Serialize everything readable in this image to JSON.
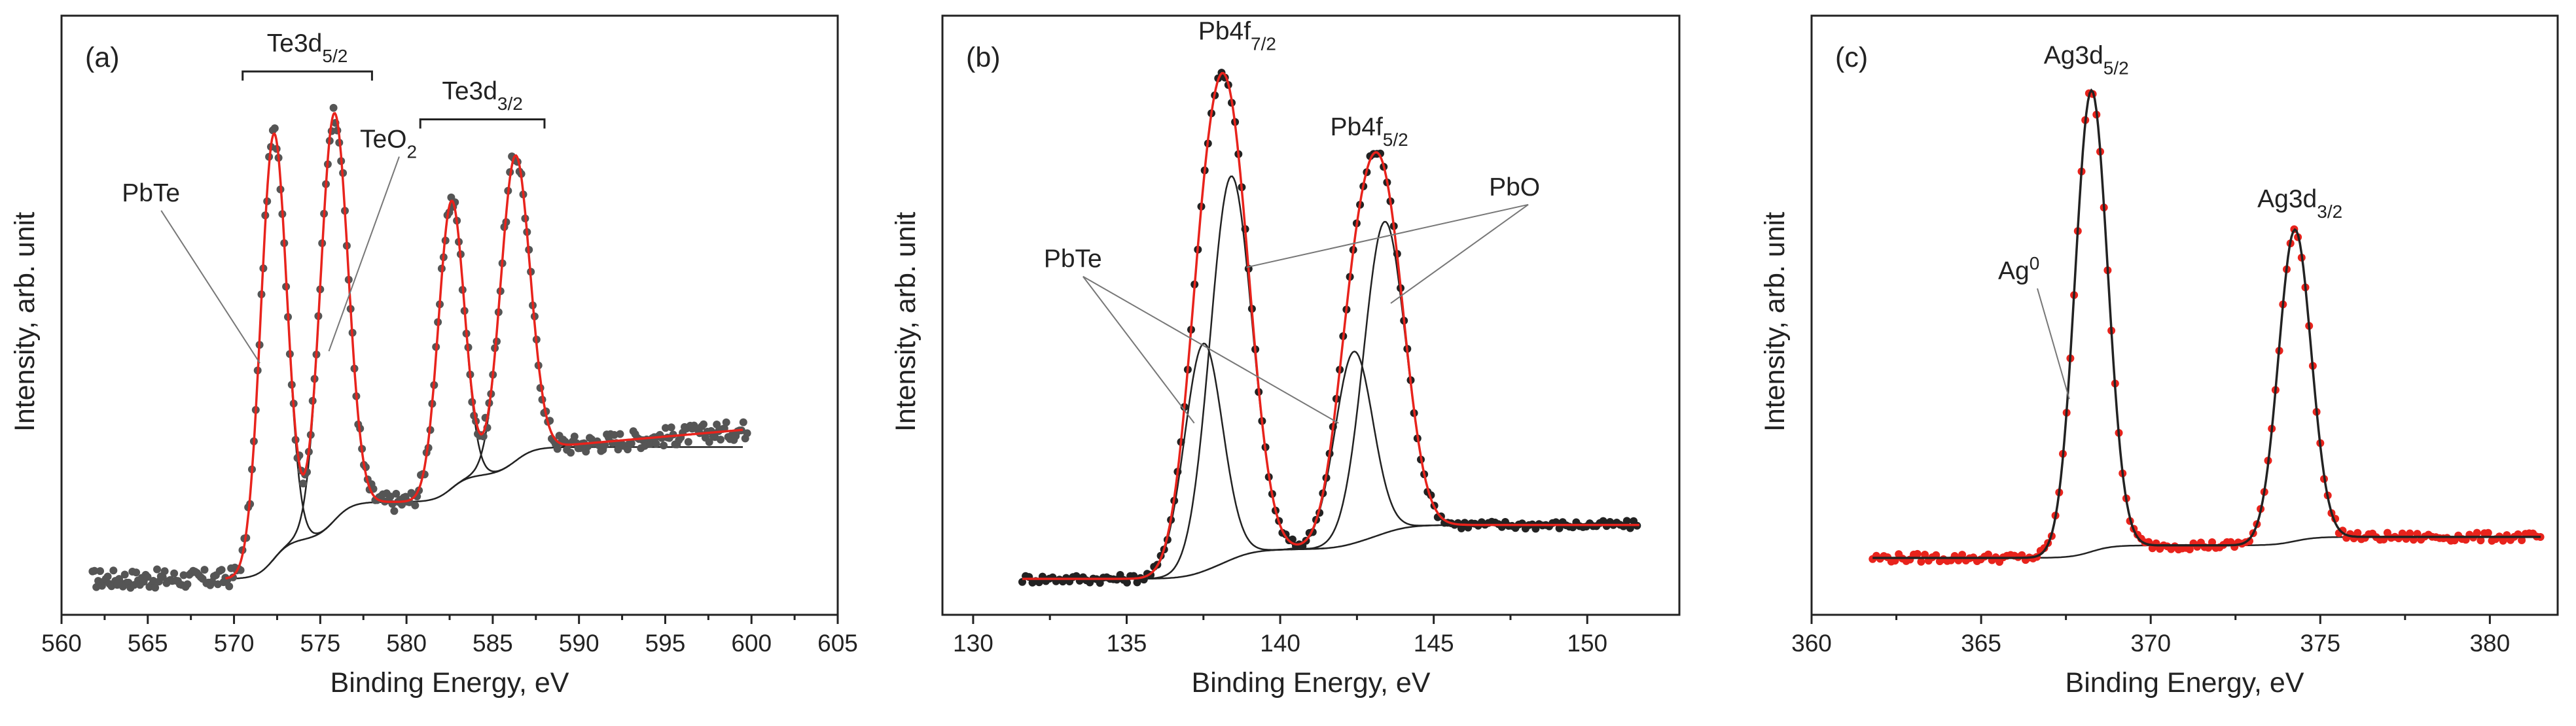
{
  "chart_data": [
    {
      "type": "line",
      "panel_label": "(a)",
      "xlabel": "Binding Energy, eV",
      "ylabel": "Intensity, arb. unit",
      "xlim": [
        560,
        605
      ],
      "ylim": [
        0,
        100
      ],
      "xticks": [
        560,
        565,
        570,
        575,
        580,
        585,
        590,
        595,
        600,
        605
      ],
      "yticks_shown": false,
      "grid": false,
      "background": {
        "start": 6,
        "end": 28
      },
      "components": [
        {
          "name": "PbTe",
          "center": 572.3,
          "amplitude": 71,
          "sigma": 0.75
        },
        {
          "name": "TeO2",
          "center": 575.8,
          "amplitude": 68,
          "sigma": 0.8
        },
        {
          "name": "PbTe 3/2",
          "center": 582.6,
          "amplitude": 48,
          "sigma": 0.75
        },
        {
          "name": "TeO2 3/2",
          "center": 586.3,
          "amplitude": 51,
          "sigma": 0.85
        }
      ],
      "data_range": [
        561.8,
        599.8
      ],
      "fit_range": [
        569.5,
        599.5
      ],
      "measured_color": "#555555",
      "fit_color": "#e8231c",
      "brackets": [
        {
          "label_main": "Te3d",
          "label_sub": "5/2",
          "x_from": 570.5,
          "x_to": 578,
          "y": 92
        },
        {
          "label_main": "Te3d",
          "label_sub": "3/2",
          "x_from": 580.8,
          "x_to": 588,
          "y": 84
        }
      ],
      "annotations": [
        {
          "label_main": "PbTe",
          "label_sub": "",
          "text_x": 563.5,
          "text_y": 69,
          "points_to": [
            [
              571.5,
              42
            ]
          ]
        },
        {
          "label_main": "TeO",
          "label_sub": "2",
          "text_x": 577.3,
          "text_y": 78,
          "points_to": [
            [
              575.5,
              44
            ]
          ]
        }
      ]
    },
    {
      "type": "line",
      "panel_label": "(b)",
      "xlabel": "Binding Energy, eV",
      "ylabel": "Intensity, arb. unit",
      "xlim": [
        129,
        153
      ],
      "ylim": [
        0,
        100
      ],
      "xticks": [
        130,
        135,
        140,
        145,
        150
      ],
      "yticks_shown": false,
      "grid": false,
      "background": {
        "start": 6,
        "end": 15
      },
      "components": [
        {
          "name": "PbTe 4f7/2",
          "center": 137.5,
          "amplitude": 38,
          "sigma": 0.62
        },
        {
          "name": "PbO 4f7/2",
          "center": 138.4,
          "amplitude": 64,
          "sigma": 0.68
        },
        {
          "name": "PbTe 4f5/2",
          "center": 142.4,
          "amplitude": 32,
          "sigma": 0.62
        },
        {
          "name": "PbO 4f5/2",
          "center": 143.4,
          "amplitude": 52,
          "sigma": 0.68
        }
      ],
      "data_range": [
        131.6,
        151.7
      ],
      "fit_range": [
        131.6,
        151.7
      ],
      "measured_color": "#222222",
      "fit_color": "#e8231c",
      "brackets": [],
      "labels": [
        {
          "label_main": "Pb4f",
          "label_sub": "7/2",
          "x": 138.6,
          "y": 96
        },
        {
          "label_main": "Pb4f",
          "label_sub": "5/2",
          "x": 142.9,
          "y": 80
        }
      ],
      "annotations": [
        {
          "label_main": "PbTe",
          "label_sub": "",
          "text_x": 132.3,
          "text_y": 58,
          "points_to": [
            [
              137.2,
              32
            ],
            [
              141.9,
              32
            ]
          ]
        },
        {
          "label_main": "PbO",
          "label_sub": "",
          "text_x": 146.8,
          "text_y": 70,
          "points_to": [
            [
              138.9,
              58
            ],
            [
              143.6,
              52
            ]
          ]
        }
      ]
    },
    {
      "type": "line",
      "panel_label": "(c)",
      "xlabel": "Binding Energy, eV",
      "ylabel": "Intensity, arb. unit",
      "xlim": [
        360,
        382
      ],
      "ylim": [
        0,
        100
      ],
      "xticks": [
        360,
        365,
        370,
        375,
        380
      ],
      "yticks_shown": false,
      "grid": false,
      "background": {
        "start": 9.5,
        "end": 13
      },
      "components": [
        {
          "name": "Ag3d5/2",
          "center": 368.25,
          "amplitude": 77,
          "sigma": 0.48
        },
        {
          "name": "Ag3d3/2",
          "center": 374.25,
          "amplitude": 52,
          "sigma": 0.48
        }
      ],
      "data_range": [
        361.8,
        381.5
      ],
      "fit_range": [
        361.8,
        381.5
      ],
      "measured_color": "#e8231c",
      "fit_color": "#222222",
      "brackets": [],
      "labels": [
        {
          "label_main": "Ag3d",
          "label_sub": "5/2",
          "x": 368.1,
          "y": 92
        },
        {
          "label_main": "Ag3d",
          "label_sub": "3/2",
          "x": 374.4,
          "y": 68
        }
      ],
      "annotations": [
        {
          "label_main": "Ag",
          "label_sub": "",
          "label_sup": "0",
          "text_x": 365.5,
          "text_y": 56,
          "points_to": [
            [
              367.6,
              36
            ]
          ]
        }
      ]
    }
  ]
}
